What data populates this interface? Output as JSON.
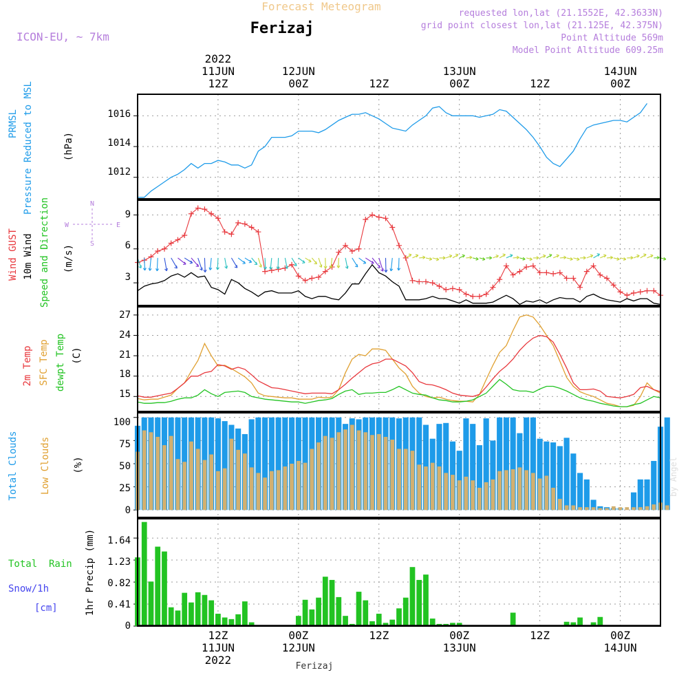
{
  "header": {
    "title": "Forecast Meteogram",
    "location": "Ferizaj",
    "model": "ICON-EU, ~ 7km",
    "requested": "requested lon,lat (21.1552E, 42.3633N)",
    "grid": "grid point closest lon,lat (21.125E, 42.375N)",
    "point_altitude": "Point Altitude 569m",
    "model_altitude": "Model Point Altitude 609.25m",
    "footer_location": "Ferizaj",
    "credit": "by Angel"
  },
  "time_axis": {
    "year": "2022",
    "ticks": [
      {
        "time": "12Z",
        "date": "11JUN",
        "year": "2022",
        "hour": 12
      },
      {
        "time": "00Z",
        "date": "12JUN",
        "year": "",
        "hour": 24
      },
      {
        "time": "12Z",
        "date": "",
        "year": "",
        "hour": 36
      },
      {
        "time": "00Z",
        "date": "13JUN",
        "year": "",
        "hour": 48
      },
      {
        "time": "12Z",
        "date": "",
        "year": "",
        "hour": 60
      },
      {
        "time": "00Z",
        "date": "14JUN",
        "year": "",
        "hour": 72
      }
    ]
  },
  "panels": {
    "pressure": {
      "labels": [
        "PRMSL",
        "Pressure Reduced to MSL",
        "(hPa)"
      ],
      "label_colors": [
        "#1e9be9",
        "#1e9be9",
        "#000000"
      ],
      "ticks": [
        "1012",
        "1014",
        "1016"
      ]
    },
    "wind": {
      "labels": [
        "Wind GUST",
        "10m Wind",
        "Speed and Direction",
        "(m/s)"
      ],
      "label_colors": [
        "#e8373c",
        "#000000",
        "#22c322",
        "#000000"
      ],
      "compass": {
        "n": "N",
        "s": "S",
        "w": "W",
        "e": "E"
      },
      "ticks": [
        "3",
        "6",
        "9"
      ]
    },
    "temp": {
      "labels": [
        "2m Temp",
        "SFC Temp",
        "dewpt Temp",
        "(C)"
      ],
      "label_colors": [
        "#e8373c",
        "#e0a030",
        "#22c322",
        "#000000"
      ],
      "ticks": [
        "15",
        "18",
        "21",
        "24",
        "27"
      ]
    },
    "clouds": {
      "labels": [
        "Total Clouds",
        "Low Clouds",
        "(%)"
      ],
      "label_colors": [
        "#1e9be9",
        "#e0a030",
        "#000000"
      ],
      "ticks": [
        "0",
        "25",
        "50",
        "75",
        "100"
      ]
    },
    "precip": {
      "labels": [
        "Total  Rain",
        "Snow/1h",
        "[cm]",
        "1hr Precip (mm)"
      ],
      "label_colors": [
        "#22c322",
        "#4444ee",
        "#4444ee",
        "#000000"
      ],
      "ticks": [
        "0",
        "0.41",
        "0.82",
        "1.23",
        "1.64"
      ]
    }
  },
  "colors": {
    "pressure": "#1e9be9",
    "gust": "#e8373c",
    "wind": "#000000",
    "t2m": "#e8373c",
    "tsfc": "#e0a030",
    "dewpt": "#22c322",
    "total_cloud": "#1e9be9",
    "low_cloud": "#d2b070",
    "rain": "#22c322"
  },
  "chart_data": [
    {
      "type": "line",
      "title": "PRMSL Pressure Reduced to MSL",
      "ylabel": "(hPa)",
      "ylim": [
        1010.6,
        1017.4
      ],
      "x_start_hour": 0,
      "x_step_hours": 1,
      "xlim": [
        0,
        78
      ],
      "series": [
        {
          "name": "PRMSL",
          "values": [
            1010.7,
            1010.7,
            1011.1,
            1011.4,
            1011.7,
            1012.0,
            1012.2,
            1012.5,
            1012.9,
            1012.6,
            1012.9,
            1012.9,
            1013.1,
            1013.0,
            1012.8,
            1012.8,
            1012.6,
            1012.8,
            1013.7,
            1014.0,
            1014.6,
            1014.6,
            1014.6,
            1014.7,
            1015.0,
            1015.0,
            1015.0,
            1014.9,
            1015.1,
            1015.4,
            1015.7,
            1015.9,
            1016.1,
            1016.1,
            1016.2,
            1016.0,
            1015.8,
            1015.5,
            1015.2,
            1015.1,
            1015.0,
            1015.4,
            1015.7,
            1016.0,
            1016.5,
            1016.6,
            1016.2,
            1016.0,
            1016.0,
            1016.0,
            1016.0,
            1015.9,
            1016.0,
            1016.1,
            1016.4,
            1016.3,
            1015.9,
            1015.5,
            1015.1,
            1014.6,
            1014.0,
            1013.3,
            1012.9,
            1012.7,
            1013.2,
            1013.7,
            1014.5,
            1015.2,
            1015.4,
            1015.5,
            1015.6,
            1015.7,
            1015.7,
            1015.6,
            1015.9,
            1016.2,
            1016.8
          ]
        }
      ]
    },
    {
      "type": "line",
      "title": "Wind GUST / 10m Wind Speed and Direction",
      "ylabel": "(m/s)",
      "ylim": [
        1,
        10.3
      ],
      "x_start_hour": 0,
      "x_step_hours": 1,
      "xlim": [
        0,
        78
      ],
      "series": [
        {
          "name": "Wind GUST",
          "values": [
            4.8,
            5.0,
            5.3,
            5.8,
            6.0,
            6.5,
            6.8,
            7.2,
            9.1,
            9.6,
            9.5,
            9.1,
            8.7,
            7.5,
            7.3,
            8.3,
            8.2,
            7.9,
            7.5,
            4.0,
            4.1,
            4.2,
            4.3,
            4.6,
            3.6,
            3.2,
            3.4,
            3.5,
            4.0,
            4.4,
            5.7,
            6.3,
            5.8,
            6.0,
            8.6,
            9.0,
            8.8,
            8.7,
            7.9,
            6.3,
            5.2,
            3.2,
            3.1,
            3.1,
            3.0,
            2.7,
            2.4,
            2.5,
            2.4,
            2.0,
            1.8,
            1.8,
            2.0,
            2.6,
            3.3,
            4.5,
            3.7,
            4.0,
            4.4,
            4.5,
            3.9,
            3.9,
            3.8,
            3.9,
            3.4,
            3.4,
            2.6,
            4.0,
            4.5,
            3.7,
            3.4,
            2.8,
            2.2,
            1.9,
            2.1,
            2.2,
            2.3,
            2.3,
            1.9
          ]
        },
        {
          "name": "10m Wind",
          "values": [
            2.3,
            2.7,
            2.9,
            3.0,
            3.2,
            3.6,
            3.8,
            3.5,
            3.9,
            3.5,
            3.6,
            2.6,
            2.4,
            2.0,
            3.3,
            3.0,
            2.5,
            2.2,
            1.8,
            2.2,
            2.3,
            2.1,
            2.1,
            2.1,
            2.3,
            1.8,
            1.6,
            1.8,
            1.8,
            1.6,
            1.5,
            2.1,
            2.9,
            2.9,
            3.8,
            4.6,
            3.9,
            3.6,
            3.1,
            2.7,
            1.5,
            1.5,
            1.5,
            1.6,
            1.8,
            1.6,
            1.6,
            1.4,
            1.2,
            1.5,
            1.2,
            1.2,
            1.2,
            1.3,
            1.6,
            1.9,
            1.6,
            1.1,
            1.4,
            1.3,
            1.5,
            1.2,
            1.5,
            1.7,
            1.6,
            1.6,
            1.3,
            1.8,
            2.0,
            1.7,
            1.5,
            1.4,
            1.3,
            1.6,
            1.4,
            1.6,
            1.6,
            1.2,
            1.1
          ]
        }
      ]
    },
    {
      "type": "line",
      "title": "2m Temp / SFC Temp / dewpt Temp",
      "ylabel": "(C)",
      "ylim": [
        12.8,
        28.2
      ],
      "x_start_hour": 0,
      "x_step_hours": 1,
      "xlim": [
        0,
        78
      ],
      "series": [
        {
          "name": "2m Temp",
          "values": [
            15.1,
            14.9,
            14.9,
            15.1,
            15.3,
            15.5,
            16.2,
            17.0,
            18.0,
            18.0,
            18.5,
            18.7,
            19.7,
            19.5,
            19.0,
            19.3,
            19.0,
            18.2,
            17.3,
            16.8,
            16.3,
            16.2,
            16.0,
            15.8,
            15.6,
            15.4,
            15.5,
            15.5,
            15.5,
            15.4,
            16.0,
            16.8,
            17.7,
            18.5,
            19.3,
            19.8,
            20.0,
            20.5,
            20.5,
            20.0,
            19.5,
            18.5,
            17.2,
            16.8,
            16.7,
            16.4,
            16.0,
            15.5,
            15.2,
            15.1,
            15.0,
            15.3,
            16.4,
            17.6,
            18.7,
            19.5,
            20.5,
            21.8,
            22.8,
            23.6,
            24.0,
            23.8,
            23.0,
            21.2,
            19.2,
            17.0,
            16.0,
            16.0,
            16.1,
            15.8,
            15.0,
            14.9,
            14.8,
            15.0,
            15.3,
            16.3,
            16.5,
            16.0,
            15.7
          ]
        },
        {
          "name": "SFC Temp",
          "values": [
            14.7,
            14.5,
            14.6,
            14.6,
            14.9,
            15.2,
            16.2,
            17.0,
            18.7,
            20.3,
            22.8,
            21.0,
            19.5,
            19.6,
            19.1,
            18.5,
            17.9,
            17.0,
            15.5,
            15.1,
            15.0,
            14.9,
            14.8,
            14.8,
            14.6,
            14.6,
            14.6,
            14.9,
            14.8,
            14.9,
            16.0,
            18.5,
            20.5,
            21.2,
            21.0,
            22.0,
            22.0,
            21.8,
            20.5,
            19.2,
            18.3,
            16.5,
            15.5,
            15.0,
            14.8,
            14.9,
            14.6,
            14.4,
            14.3,
            14.3,
            14.2,
            15.3,
            17.5,
            19.6,
            21.5,
            22.5,
            24.7,
            26.7,
            27.0,
            26.7,
            25.5,
            24.0,
            22.5,
            20.2,
            17.8,
            16.5,
            15.7,
            15.3,
            15.0,
            14.5,
            14.0,
            13.8,
            13.5,
            13.5,
            13.7,
            15.0,
            17.0,
            16.0,
            15.5
          ]
        },
        {
          "name": "dewpt Temp",
          "values": [
            14.2,
            14.0,
            14.0,
            14.1,
            14.1,
            14.3,
            14.6,
            14.8,
            14.8,
            15.2,
            16.0,
            15.4,
            15.0,
            15.6,
            15.7,
            15.8,
            15.6,
            15.0,
            14.8,
            14.6,
            14.5,
            14.4,
            14.3,
            14.2,
            14.2,
            14.0,
            14.2,
            14.4,
            14.5,
            14.7,
            15.3,
            15.8,
            16.0,
            15.3,
            15.5,
            15.5,
            15.6,
            15.6,
            16.0,
            16.5,
            16.0,
            15.5,
            15.3,
            15.2,
            14.8,
            14.5,
            14.4,
            14.2,
            14.2,
            14.3,
            14.5,
            15.0,
            15.5,
            16.5,
            17.5,
            16.8,
            16.0,
            15.8,
            15.8,
            15.6,
            16.1,
            16.5,
            16.5,
            16.2,
            15.8,
            15.3,
            14.8,
            14.5,
            14.3,
            14.0,
            13.8,
            13.6,
            13.5,
            13.5,
            13.8,
            14.0,
            14.5,
            15.0,
            14.8
          ]
        }
      ]
    },
    {
      "type": "bar",
      "title": "Total Clouds / Low Clouds",
      "ylabel": "(%)",
      "ylim": [
        -8,
        105
      ],
      "x_start_hour": 0,
      "x_step_hours": 1,
      "xlim": [
        0,
        78
      ],
      "series": [
        {
          "name": "Total Clouds",
          "values": [
            91,
            100,
            100,
            100,
            100,
            100,
            100,
            100,
            100,
            100,
            100,
            100,
            99,
            96,
            92,
            88,
            82,
            98,
            100,
            100,
            100,
            100,
            100,
            100,
            100,
            100,
            100,
            100,
            100,
            100,
            100,
            93,
            99,
            98,
            100,
            100,
            100,
            100,
            100,
            99,
            100,
            100,
            100,
            92,
            77,
            93,
            94,
            74,
            64,
            99,
            93,
            70,
            99,
            75,
            100,
            100,
            100,
            83,
            100,
            100,
            77,
            74,
            73,
            69,
            78,
            61,
            40,
            33,
            11,
            4,
            3,
            2,
            2,
            0,
            19,
            33,
            33,
            53,
            90,
            100
          ]
        },
        {
          "name": "Low Clouds",
          "values": [
            63,
            86,
            84,
            79,
            70,
            80,
            55,
            52,
            74,
            66,
            54,
            60,
            42,
            45,
            77,
            65,
            61,
            46,
            40,
            35,
            42,
            43,
            47,
            50,
            53,
            51,
            66,
            73,
            80,
            78,
            84,
            87,
            92,
            86,
            84,
            81,
            82,
            79,
            76,
            66,
            66,
            64,
            49,
            47,
            51,
            47,
            40,
            38,
            32,
            36,
            32,
            24,
            30,
            33,
            42,
            43,
            44,
            46,
            43,
            40,
            34,
            37,
            24,
            12,
            5,
            5,
            3,
            3,
            3,
            2,
            2,
            4,
            3,
            3,
            3,
            3,
            4,
            6,
            8,
            5
          ]
        }
      ]
    },
    {
      "type": "bar",
      "title": "Total Rain / Snow 1hr Precip",
      "ylabel": "1hr Precip (mm)",
      "ylim": [
        0,
        2.0
      ],
      "x_start_hour": 0,
      "x_step_hours": 1,
      "xlim": [
        0,
        78
      ],
      "series": [
        {
          "name": "Total Rain",
          "values": [
            1.28,
            1.94,
            0.83,
            1.48,
            1.39,
            0.35,
            0.29,
            0.62,
            0.44,
            0.63,
            0.58,
            0.48,
            0.23,
            0.16,
            0.13,
            0.22,
            0.46,
            0.07,
            0.0,
            0.0,
            0.0,
            0.0,
            0.0,
            0.0,
            0.19,
            0.49,
            0.31,
            0.53,
            0.92,
            0.86,
            0.54,
            0.19,
            0.04,
            0.64,
            0.48,
            0.09,
            0.23,
            0.06,
            0.12,
            0.33,
            0.53,
            1.1,
            0.86,
            0.96,
            0.14,
            0.04,
            0.04,
            0.06,
            0.06,
            0.0,
            0.0,
            0.0,
            0.0,
            0.0,
            0.0,
            0.0,
            0.25,
            0.0,
            0.0,
            0.0,
            0.0,
            0.0,
            0.0,
            0.0,
            0.08,
            0.07,
            0.16,
            0.0,
            0.07,
            0.17,
            0.0,
            0.0,
            0.0,
            0.0,
            0.0,
            0.0,
            0.0,
            0.0,
            0.0
          ]
        }
      ]
    }
  ]
}
